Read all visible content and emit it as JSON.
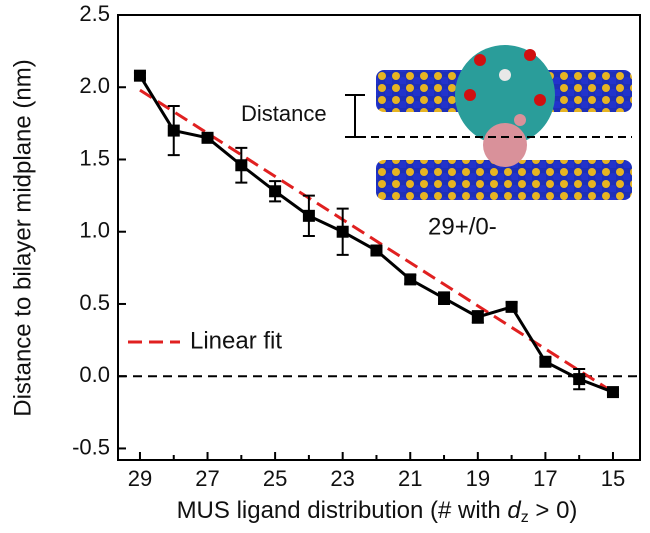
{
  "chart_data": {
    "type": "line",
    "xlabel": [
      "MUS ligand distribution (# with ",
      "d",
      "z",
      " > 0)"
    ],
    "ylabel": "Distance to bilayer midplane (nm)",
    "x": [
      29,
      28,
      27,
      26,
      25,
      24,
      23,
      22,
      21,
      20,
      19,
      18,
      17,
      16,
      15
    ],
    "series": [
      {
        "color": "#000000",
        "values": [
          2.08,
          1.7,
          1.65,
          1.46,
          1.28,
          1.11,
          1.0,
          0.87,
          0.67,
          0.54,
          0.41,
          0.48,
          0.1,
          -0.02,
          -0.11
        ],
        "errors": [
          0.02,
          0.17,
          0.02,
          0.12,
          0.07,
          0.14,
          0.16,
          0.02,
          0.03,
          0.04,
          0.04,
          0.03,
          0.03,
          0.07,
          0.02
        ]
      }
    ],
    "fit": {
      "name": "Linear fit",
      "color": "#e02020",
      "x": [
        29,
        15
      ],
      "values": [
        1.98,
        -0.11
      ]
    },
    "hline": 0,
    "xlim": [
      29.65,
      14.2
    ],
    "ylim": [
      -0.58,
      2.5
    ],
    "xticks": [
      29,
      27,
      25,
      23,
      21,
      19,
      17,
      15
    ],
    "xminor": [
      28,
      26,
      24,
      22,
      20,
      18,
      16
    ],
    "yticks": [
      2.5,
      {
        "value": 2.0,
        "label": "2.0"
      },
      1.5,
      {
        "value": 1.0,
        "label": "1.0"
      },
      0.5,
      {
        "value": 0.0,
        "label": "0.0"
      },
      -0.5
    ],
    "inset": {
      "distance_label": "Distance",
      "caption": "29+/0-"
    }
  }
}
